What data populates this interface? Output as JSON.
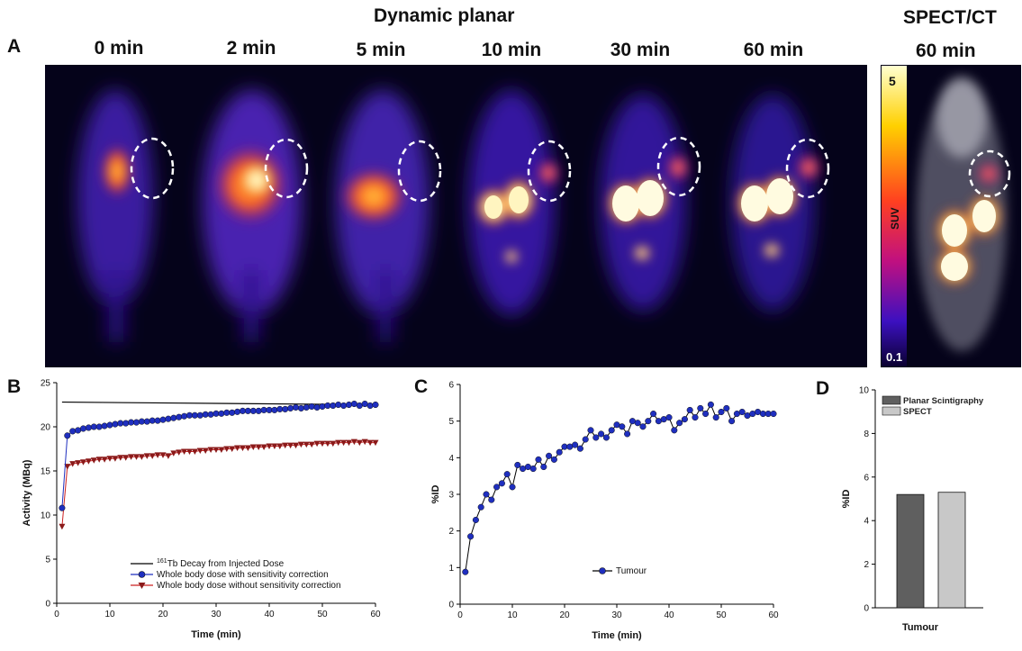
{
  "panel_a": {
    "label": "A",
    "title": "Dynamic planar",
    "spect_title": "SPECT/CT",
    "spect_time": "60 min",
    "frames": [
      "0 min",
      "2 min",
      "5 min",
      "10 min",
      "30 min",
      "60 min"
    ],
    "colorbar": {
      "max": "5",
      "min": "0.1",
      "label": "SUV"
    }
  },
  "colors": {
    "blue_series": "#1f2fbf",
    "red_series": "#8b1a1a",
    "planar_bar": "#5f5f5f",
    "spect_bar": "#c8c8c8"
  },
  "chart_data": [
    {
      "panel": "B",
      "type": "line",
      "xlabel": "Time (min)",
      "ylabel": "Activity (MBq)",
      "xlim": [
        0,
        60
      ],
      "ylim": [
        0,
        25
      ],
      "xticks": [
        0,
        10,
        20,
        30,
        40,
        50,
        60
      ],
      "yticks": [
        0,
        5,
        10,
        15,
        20,
        25
      ],
      "legend": {
        "placement": "bottom-center",
        "first_entry_sup": "161",
        "first_entry_rest": "Tb Decay from Injected Dose"
      },
      "series": [
        {
          "name": "161Tb Decay from Injected Dose",
          "marker": "none",
          "x": [
            1,
            21,
            60
          ],
          "y": [
            22.8,
            22.7,
            22.5
          ]
        },
        {
          "name": "Whole body dose with sensitivity correction",
          "marker": "circle",
          "x": [
            1,
            2,
            3,
            4,
            5,
            6,
            7,
            8,
            9,
            10,
            11,
            12,
            13,
            14,
            15,
            16,
            17,
            18,
            19,
            20,
            21,
            22,
            23,
            24,
            25,
            26,
            27,
            28,
            29,
            30,
            31,
            32,
            33,
            34,
            35,
            36,
            37,
            38,
            39,
            40,
            41,
            42,
            43,
            44,
            45,
            46,
            47,
            48,
            49,
            50,
            51,
            52,
            53,
            54,
            55,
            56,
            57,
            58,
            59,
            60
          ],
          "y": [
            10.8,
            19.0,
            19.5,
            19.6,
            19.8,
            19.9,
            20.0,
            20.0,
            20.1,
            20.2,
            20.3,
            20.4,
            20.4,
            20.5,
            20.5,
            20.6,
            20.6,
            20.7,
            20.7,
            20.8,
            20.9,
            21.0,
            21.1,
            21.2,
            21.3,
            21.3,
            21.3,
            21.4,
            21.4,
            21.5,
            21.5,
            21.6,
            21.6,
            21.7,
            21.8,
            21.8,
            21.8,
            21.8,
            21.9,
            21.9,
            21.9,
            22.0,
            22.0,
            22.1,
            22.2,
            22.1,
            22.2,
            22.3,
            22.2,
            22.3,
            22.4,
            22.4,
            22.5,
            22.4,
            22.5,
            22.6,
            22.4,
            22.6,
            22.4,
            22.5
          ]
        },
        {
          "name": "Whole body dose without sensitivity correction",
          "marker": "triangle-down",
          "x": [
            1,
            2,
            3,
            4,
            5,
            6,
            7,
            8,
            9,
            10,
            11,
            12,
            13,
            14,
            15,
            16,
            17,
            18,
            19,
            20,
            21,
            22,
            23,
            24,
            25,
            26,
            27,
            28,
            29,
            30,
            31,
            32,
            33,
            34,
            35,
            36,
            37,
            38,
            39,
            40,
            41,
            42,
            43,
            44,
            45,
            46,
            47,
            48,
            49,
            50,
            51,
            52,
            53,
            54,
            55,
            56,
            57,
            58,
            59,
            60
          ],
          "y": [
            8.7,
            15.5,
            15.8,
            15.9,
            16.0,
            16.1,
            16.2,
            16.3,
            16.3,
            16.4,
            16.4,
            16.5,
            16.5,
            16.6,
            16.6,
            16.6,
            16.7,
            16.7,
            16.8,
            16.8,
            16.7,
            17.0,
            17.1,
            17.2,
            17.2,
            17.2,
            17.3,
            17.3,
            17.4,
            17.4,
            17.4,
            17.5,
            17.5,
            17.6,
            17.6,
            17.6,
            17.7,
            17.7,
            17.7,
            17.8,
            17.8,
            17.8,
            17.9,
            17.9,
            17.9,
            18.0,
            18.0,
            18.0,
            18.1,
            18.1,
            18.1,
            18.1,
            18.2,
            18.2,
            18.2,
            18.3,
            18.2,
            18.3,
            18.2,
            18.2
          ]
        }
      ]
    },
    {
      "panel": "C",
      "type": "line",
      "xlabel": "Time (min)",
      "ylabel": "%ID",
      "xlim": [
        0,
        60
      ],
      "ylim": [
        0,
        6
      ],
      "xticks": [
        0,
        10,
        20,
        30,
        40,
        50,
        60
      ],
      "yticks": [
        0,
        1,
        2,
        3,
        4,
        5,
        6
      ],
      "legend": {
        "placement": "bottom-center"
      },
      "series": [
        {
          "name": "Tumour",
          "marker": "circle",
          "x": [
            1,
            2,
            3,
            4,
            5,
            6,
            7,
            8,
            9,
            10,
            11,
            12,
            13,
            14,
            15,
            16,
            17,
            18,
            19,
            20,
            21,
            22,
            23,
            24,
            25,
            26,
            27,
            28,
            29,
            30,
            31,
            32,
            33,
            34,
            35,
            36,
            37,
            38,
            39,
            40,
            41,
            42,
            43,
            44,
            45,
            46,
            47,
            48,
            49,
            50,
            51,
            52,
            53,
            54,
            55,
            56,
            57,
            58,
            59,
            60
          ],
          "y": [
            0.88,
            1.85,
            2.3,
            2.65,
            3.0,
            2.85,
            3.2,
            3.3,
            3.55,
            3.2,
            3.8,
            3.7,
            3.75,
            3.7,
            3.95,
            3.75,
            4.05,
            3.95,
            4.15,
            4.3,
            4.3,
            4.35,
            4.25,
            4.5,
            4.75,
            4.55,
            4.65,
            4.55,
            4.75,
            4.9,
            4.85,
            4.65,
            5.0,
            4.95,
            4.85,
            5.0,
            5.2,
            5.0,
            5.05,
            5.1,
            4.75,
            4.95,
            5.05,
            5.3,
            5.1,
            5.35,
            5.2,
            5.45,
            5.1,
            5.25,
            5.35,
            5.0,
            5.2,
            5.25,
            5.15,
            5.2,
            5.25,
            5.2,
            5.2,
            5.2
          ]
        }
      ]
    },
    {
      "panel": "D",
      "type": "bar",
      "categories": [
        "Tumour"
      ],
      "xlabel": "Tumour",
      "ylabel": "%ID",
      "ylim": [
        0,
        10
      ],
      "yticks": [
        0,
        2,
        4,
        6,
        8,
        10
      ],
      "legend": {
        "placement": "top-left"
      },
      "series": [
        {
          "name": "Planar Scintigraphy",
          "values": [
            5.2
          ]
        },
        {
          "name": "SPECT",
          "values": [
            5.3
          ]
        }
      ]
    }
  ]
}
